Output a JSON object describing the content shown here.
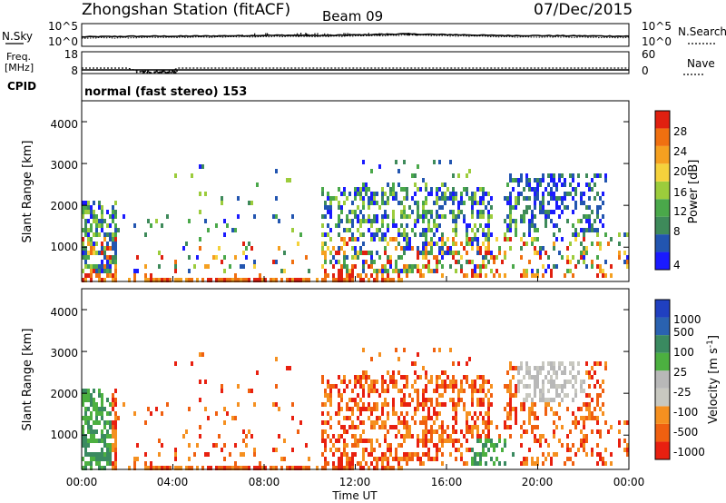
{
  "header": {
    "station": "Zhongshan Station (fitACF)",
    "beam": "Beam 09",
    "date": "07/Dec/2015"
  },
  "chart_data": [
    {
      "type": "line",
      "panel": "noise",
      "left_label": "N.Sky",
      "right_label": "N.Search",
      "left_ticks": [
        "10^5",
        "10^0"
      ],
      "right_ticks": [
        "10^5",
        "10^0"
      ],
      "series": [
        {
          "style": "solid",
          "values_log10": [
            2.6,
            2.7,
            2.75,
            2.8,
            2.8,
            2.85,
            2.9,
            2.95,
            3.05,
            3.1,
            3.0,
            3.05,
            3.2,
            3.35,
            3.5,
            3.4,
            3.3,
            3.2,
            3.05,
            3.0,
            3.0,
            2.95,
            2.9,
            2.85,
            2.8
          ]
        },
        {
          "style": "dotted",
          "values_log10": [
            2.2,
            2.3,
            2.35,
            2.4,
            2.45,
            2.5,
            2.55,
            2.6,
            2.7,
            2.75,
            2.7,
            2.75,
            2.85,
            3.0,
            3.15,
            3.05,
            2.95,
            2.85,
            2.7,
            2.6,
            2.6,
            2.55,
            2.5,
            2.45,
            2.4
          ]
        }
      ]
    },
    {
      "type": "line",
      "panel": "frequency",
      "left_label_top": "Freq.",
      "left_label_bottom": "[MHz]",
      "right_label": "Nave",
      "left_ticks": [
        "18",
        "8"
      ],
      "right_ticks": [
        "60",
        "0"
      ],
      "freq_MHz_hours": [
        0,
        1,
        2,
        2.6,
        3,
        3.5,
        3.9,
        4.2,
        5,
        24
      ],
      "freq_MHz_values": [
        11.5,
        11.5,
        11.5,
        9.0,
        8.6,
        8.8,
        9.1,
        11.5,
        11.5,
        11.5
      ],
      "nave_level": 28
    },
    {
      "type": "text",
      "panel": "cpid",
      "label": "CPID",
      "mode": "normal (fast stereo) 153"
    },
    {
      "type": "heatmap",
      "panel": "power",
      "ylabel": "Slant Range [km]",
      "yticks": [
        "1000",
        "2000",
        "3000",
        "4000"
      ],
      "ylim": [
        180,
        4500
      ],
      "xlim_hours": [
        0,
        24
      ],
      "colorbar_label": "Power [dB]",
      "colorbar_ticks": [
        "4",
        "8",
        "12",
        "16",
        "20",
        "24",
        "28"
      ],
      "colorbar_colors": [
        "#1a1aff",
        "#2255b0",
        "#3e8a5a",
        "#4aa84a",
        "#9ccc3c",
        "#f5d23c",
        "#f5a020",
        "#f07010",
        "#e02010"
      ]
    },
    {
      "type": "heatmap",
      "panel": "velocity",
      "ylabel": "Slant Range [km]",
      "yticks": [
        "1000",
        "2000",
        "3000",
        "4000"
      ],
      "ylim": [
        180,
        4500
      ],
      "xlim_hours": [
        0,
        24
      ],
      "xlabel": "Time UT",
      "xticks": [
        "00:00",
        "04:00",
        "08:00",
        "12:00",
        "16:00",
        "20:00",
        "00:00"
      ],
      "colorbar_label": "Velocity [m s",
      "colorbar_label_sup": "-1",
      "colorbar_label_end": "]",
      "colorbar_ticks": [
        "1000",
        "500",
        "100",
        "25",
        "-25",
        "-100",
        "-500",
        "-1000"
      ],
      "colorbar_colors": [
        "#2040c0",
        "#2a62b0",
        "#3a8a60",
        "#4cb040",
        "#b8b8b8",
        "#c8c8c0",
        "#f59020",
        "#f06010",
        "#e82010"
      ]
    }
  ]
}
